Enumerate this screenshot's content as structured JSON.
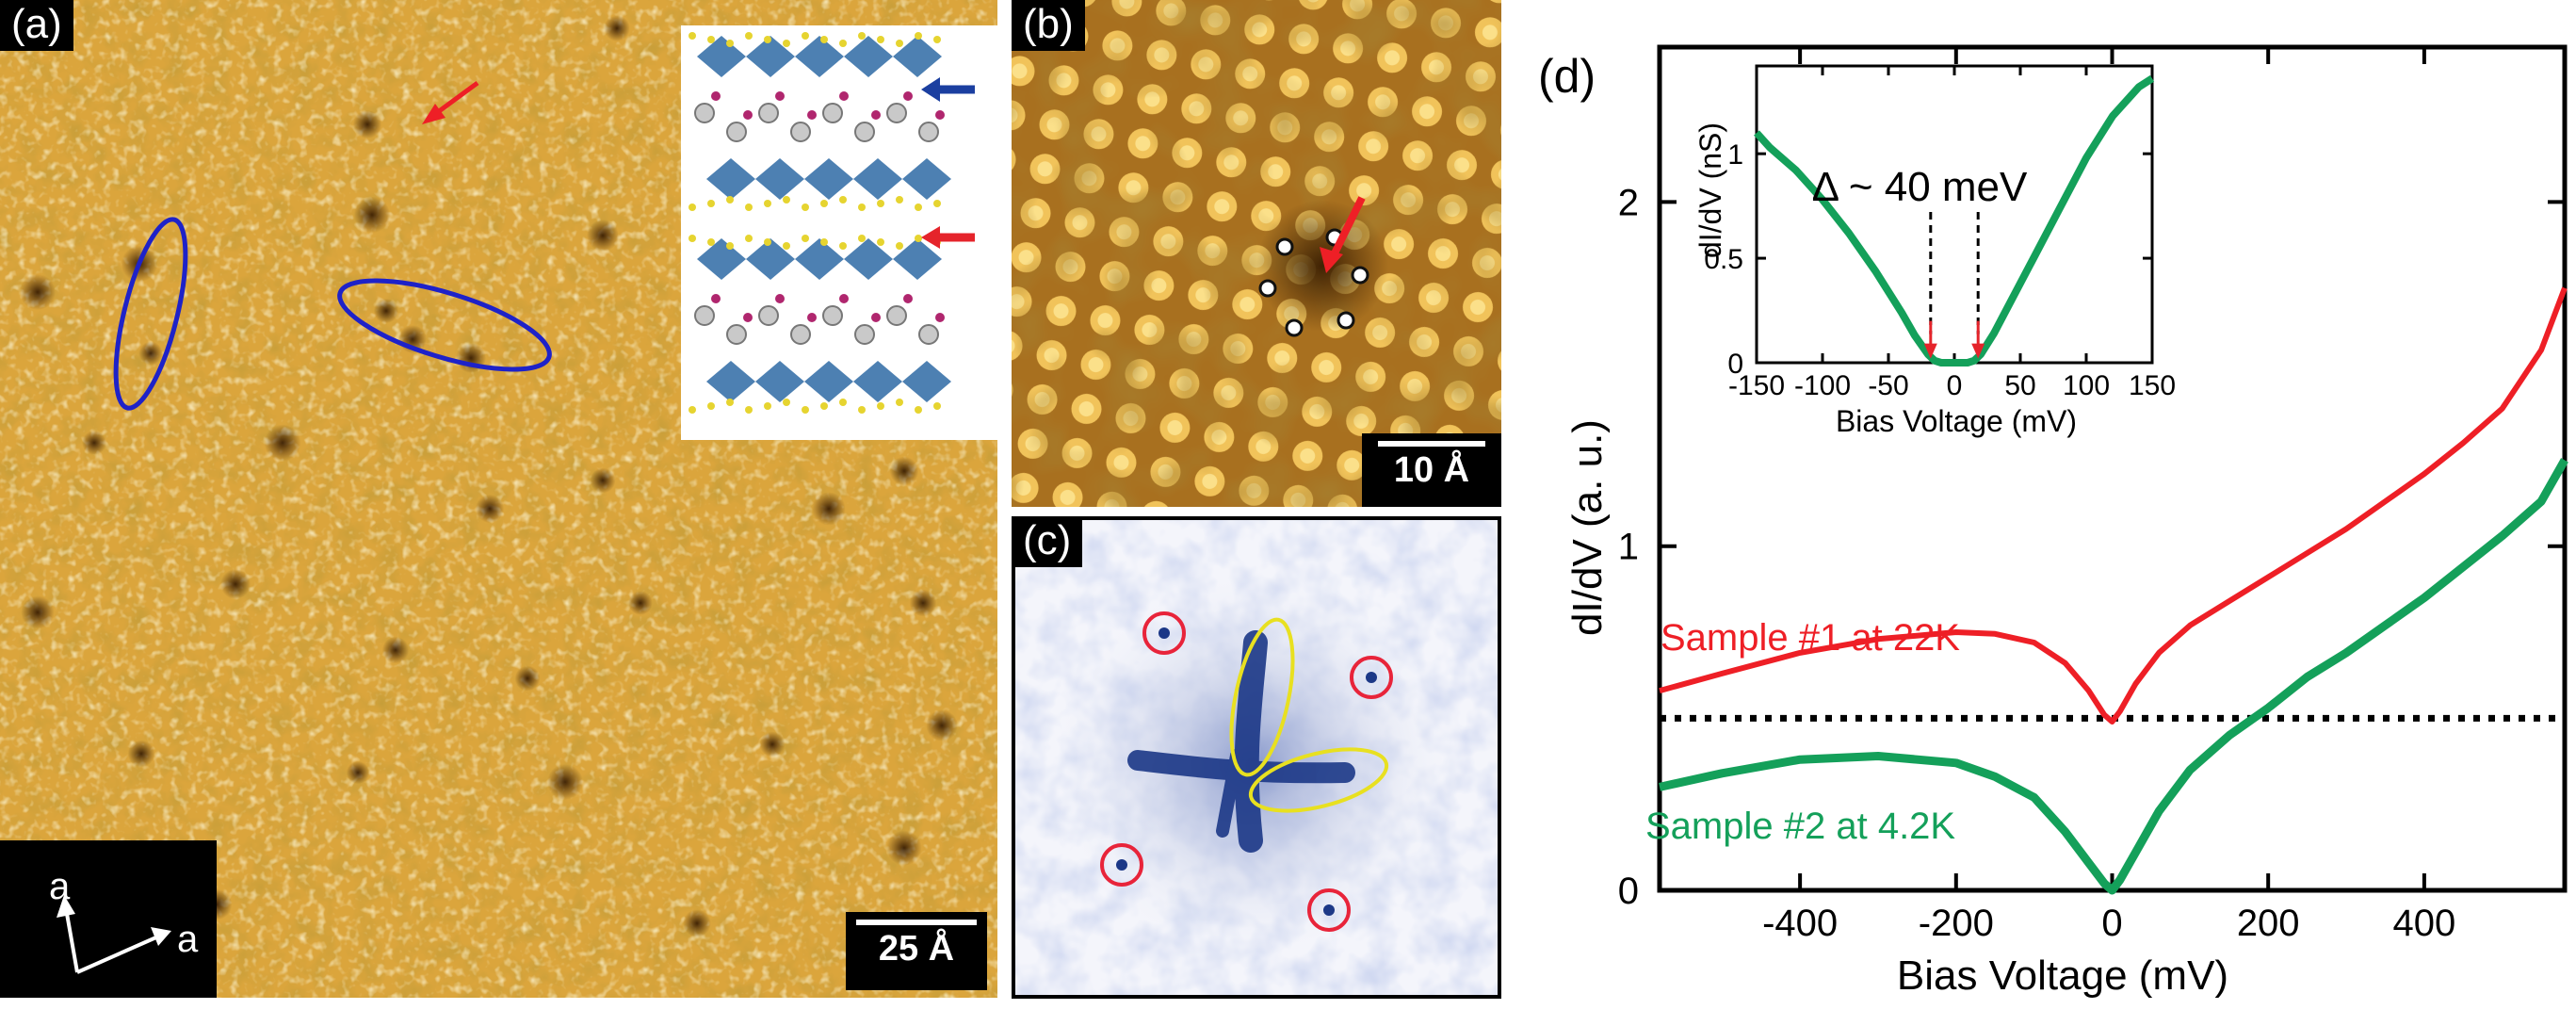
{
  "panels": {
    "a": {
      "label": "(a)",
      "scale_bar": "25 Å",
      "axis_label_1": "a",
      "axis_label_2": "a"
    },
    "b": {
      "label": "(b)",
      "scale_bar": "10 Å"
    },
    "c": {
      "label": "(c)"
    },
    "d": {
      "label": "(d)"
    }
  },
  "colors": {
    "stm_gold": "#d9a23a",
    "stm_dark": "#7a4a10",
    "fft_blue": "#2b4a9a",
    "sample1": "#ee1f26",
    "sample2": "#14a05a",
    "ellipse_blue": "#1e22c8",
    "ellipse_yellow": "#e8e020",
    "circle_red": "#e8243a"
  },
  "chart_data": [
    {
      "type": "line",
      "xlabel": "Bias Voltage (mV)",
      "ylabel": "dI/dV (a. u.)",
      "xlim": [
        -580,
        580
      ],
      "ylim": [
        0,
        2.45
      ],
      "xticks": [
        -400,
        -200,
        0,
        200,
        400
      ],
      "xtick_labels": [
        "-400",
        "-200",
        "0",
        "200",
        "400"
      ],
      "yticks": [
        0,
        1,
        2
      ],
      "ytick_labels": [
        "0",
        "1",
        "2"
      ],
      "reference_line": {
        "y": 0.5,
        "style": "dotted"
      },
      "series": [
        {
          "name": "Sample #1 at 22K",
          "color": "#ee1f26",
          "x": [
            -580,
            -500,
            -400,
            -300,
            -200,
            -150,
            -100,
            -60,
            -30,
            -10,
            0,
            10,
            30,
            60,
            100,
            150,
            200,
            250,
            300,
            350,
            400,
            450,
            500,
            550,
            580
          ],
          "y": [
            0.58,
            0.63,
            0.69,
            0.73,
            0.75,
            0.745,
            0.72,
            0.66,
            0.58,
            0.51,
            0.49,
            0.52,
            0.6,
            0.69,
            0.77,
            0.84,
            0.91,
            0.98,
            1.05,
            1.13,
            1.21,
            1.3,
            1.4,
            1.57,
            1.75
          ]
        },
        {
          "name": "Sample #2 at 4.2K",
          "color": "#14a05a",
          "x": [
            -580,
            -500,
            -400,
            -300,
            -200,
            -150,
            -100,
            -60,
            -30,
            -10,
            0,
            10,
            30,
            60,
            100,
            150,
            200,
            250,
            300,
            350,
            400,
            450,
            500,
            550,
            580
          ],
          "y": [
            0.3,
            0.34,
            0.38,
            0.39,
            0.37,
            0.33,
            0.27,
            0.17,
            0.08,
            0.02,
            0.0,
            0.03,
            0.11,
            0.23,
            0.35,
            0.45,
            0.53,
            0.62,
            0.69,
            0.77,
            0.85,
            0.94,
            1.03,
            1.13,
            1.25
          ]
        }
      ],
      "annotations": [
        {
          "text": "Sample #1 at 22K",
          "color": "#ee1f26"
        },
        {
          "text": "Sample #2 at 4.2K",
          "color": "#14a05a"
        }
      ]
    },
    {
      "type": "line",
      "title": "inset",
      "xlabel": "Bias Voltage (mV)",
      "ylabel": "dI/dV (nS)",
      "xlim": [
        -150,
        150
      ],
      "ylim": [
        0,
        1.42
      ],
      "xticks": [
        -150,
        -100,
        -50,
        0,
        50,
        100,
        150
      ],
      "xtick_labels": [
        "-150",
        "-100",
        "-50",
        "0",
        "50",
        "100",
        "150"
      ],
      "yticks": [
        0,
        0.5,
        1
      ],
      "ytick_labels": [
        "0",
        "0.5",
        "1"
      ],
      "gap_label": "Δ ~ 40 meV",
      "gap_markers_mV": [
        -18,
        18
      ],
      "series": [
        {
          "name": "Sample #2 at 4.2K",
          "color": "#14a05a",
          "x": [
            -150,
            -140,
            -120,
            -100,
            -80,
            -60,
            -40,
            -30,
            -20,
            -15,
            -10,
            0,
            10,
            15,
            20,
            30,
            40,
            60,
            80,
            100,
            120,
            140,
            150
          ],
          "y": [
            1.1,
            1.03,
            0.92,
            0.78,
            0.62,
            0.44,
            0.24,
            0.13,
            0.04,
            0.01,
            0.0,
            0.0,
            0.0,
            0.01,
            0.04,
            0.14,
            0.26,
            0.5,
            0.74,
            0.98,
            1.18,
            1.32,
            1.36
          ]
        }
      ]
    }
  ]
}
